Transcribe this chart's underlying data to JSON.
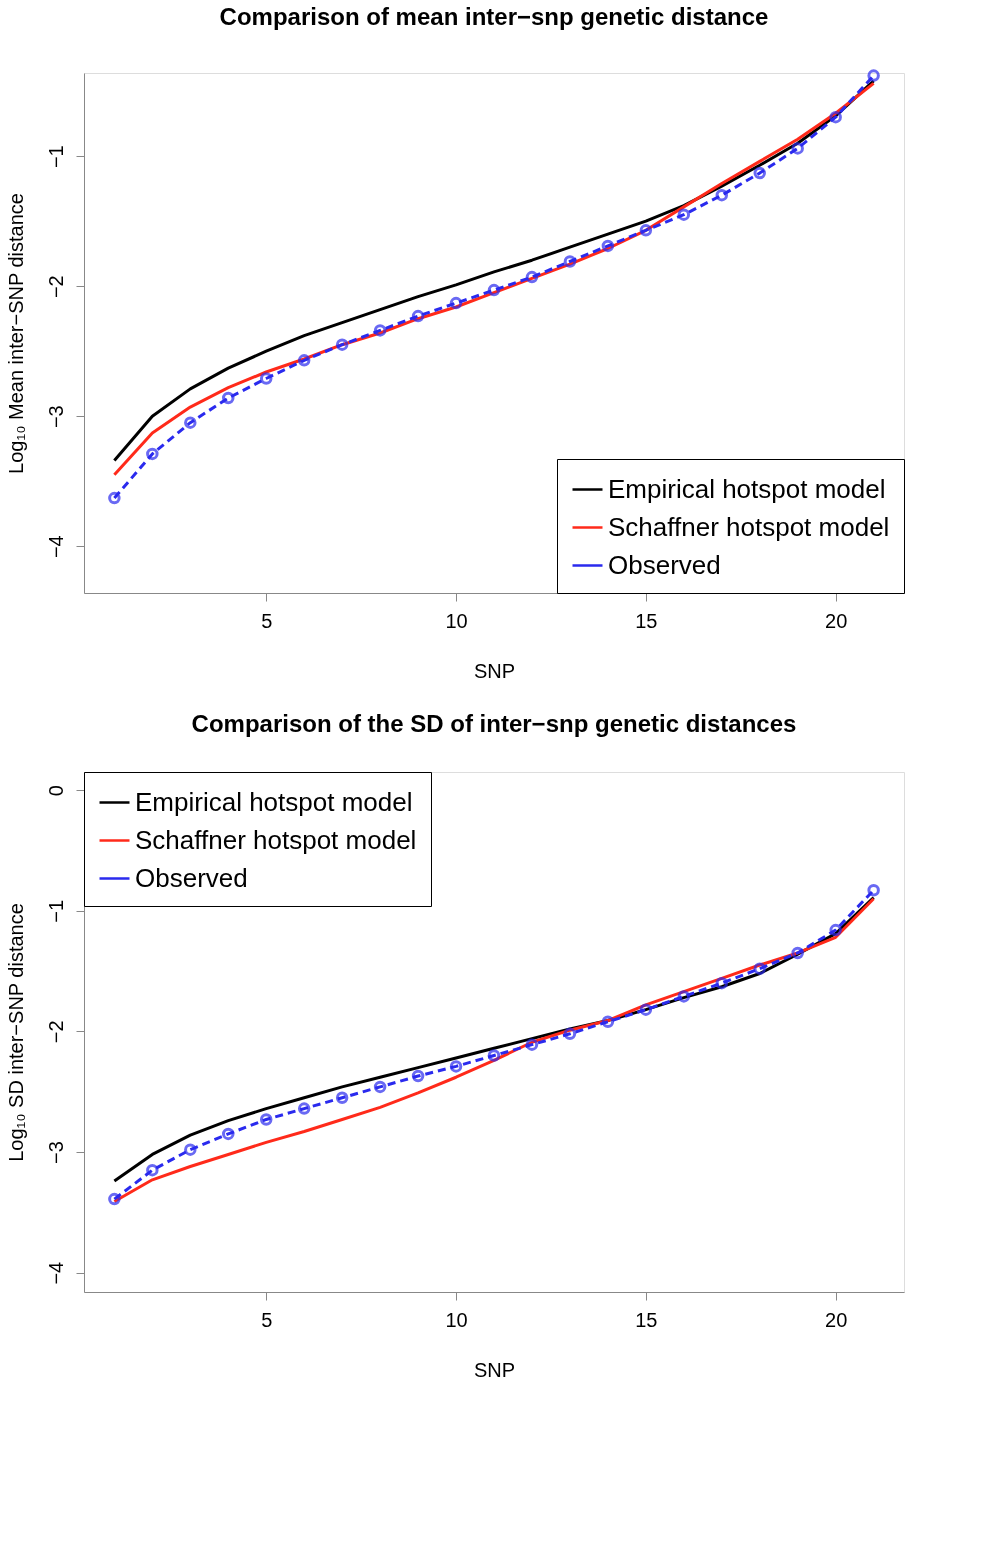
{
  "chart_data": [
    {
      "type": "line",
      "title": "Comparison of mean inter−snp genetic distance",
      "xlabel": "SNP",
      "ylabel": "Log₁₀ Mean inter−SNP distance",
      "x": [
        1,
        2,
        3,
        4,
        5,
        6,
        7,
        8,
        9,
        10,
        11,
        12,
        13,
        14,
        15,
        16,
        17,
        18,
        19,
        20,
        21
      ],
      "xlim": [
        0.2,
        21.8
      ],
      "xticks": [
        5,
        10,
        15,
        20
      ],
      "ylim": [
        -4.36,
        -0.36
      ],
      "yticks": [
        -4,
        -3,
        -2,
        -1
      ],
      "grid": false,
      "legend": "bottom right",
      "series": [
        {
          "name": "Empirical hotspot model",
          "color": "#000000",
          "line_style": "solid",
          "marker": "none",
          "values": [
            -3.34,
            -3.0,
            -2.79,
            -2.63,
            -2.5,
            -2.38,
            -2.28,
            -2.18,
            -2.08,
            -1.99,
            -1.89,
            -1.8,
            -1.7,
            -1.6,
            -1.5,
            -1.38,
            -1.23,
            -1.07,
            -0.9,
            -0.69,
            -0.42
          ]
        },
        {
          "name": "Schaffner hotspot model",
          "color": "#ff2a1a",
          "line_style": "solid",
          "marker": "none",
          "values": [
            -3.45,
            -3.13,
            -2.93,
            -2.78,
            -2.66,
            -2.56,
            -2.45,
            -2.36,
            -2.25,
            -2.16,
            -2.05,
            -1.94,
            -1.83,
            -1.71,
            -1.57,
            -1.39,
            -1.21,
            -1.04,
            -0.87,
            -0.67,
            -0.44
          ]
        },
        {
          "name": "Observed",
          "color": "#2a2aee",
          "line_style": "dashed",
          "marker": "circle",
          "values": [
            -3.63,
            -3.29,
            -3.05,
            -2.86,
            -2.71,
            -2.57,
            -2.45,
            -2.34,
            -2.23,
            -2.13,
            -2.03,
            -1.93,
            -1.81,
            -1.69,
            -1.57,
            -1.45,
            -1.3,
            -1.13,
            -0.94,
            -0.7,
            -0.38
          ]
        }
      ]
    },
    {
      "type": "line",
      "title": "Comparison of the SD of inter−snp genetic distances",
      "xlabel": "SNP",
      "ylabel": "Log₁₀ SD inter−SNP distance",
      "x": [
        1,
        2,
        3,
        4,
        5,
        6,
        7,
        8,
        9,
        10,
        11,
        12,
        13,
        14,
        15,
        16,
        17,
        18,
        19,
        20,
        21
      ],
      "xlim": [
        0.2,
        21.8
      ],
      "xticks": [
        5,
        10,
        15,
        20
      ],
      "ylim": [
        -4.16,
        0.15
      ],
      "yticks": [
        -4,
        -3,
        -2,
        -1,
        0
      ],
      "grid": false,
      "legend": "top left",
      "series": [
        {
          "name": "Empirical hotspot model",
          "color": "#000000",
          "line_style": "solid",
          "marker": "none",
          "values": [
            -3.24,
            -3.02,
            -2.86,
            -2.74,
            -2.64,
            -2.55,
            -2.46,
            -2.38,
            -2.3,
            -2.22,
            -2.14,
            -2.06,
            -1.98,
            -1.91,
            -1.82,
            -1.72,
            -1.63,
            -1.52,
            -1.36,
            -1.19,
            -0.89
          ]
        },
        {
          "name": "Schaffner hotspot model",
          "color": "#ff2a1a",
          "line_style": "solid",
          "marker": "none",
          "values": [
            -3.41,
            -3.23,
            -3.12,
            -3.02,
            -2.92,
            -2.83,
            -2.73,
            -2.63,
            -2.51,
            -2.38,
            -2.24,
            -2.09,
            -1.99,
            -1.91,
            -1.78,
            -1.67,
            -1.56,
            -1.45,
            -1.35,
            -1.22,
            -0.9
          ]
        },
        {
          "name": "Observed",
          "color": "#2a2aee",
          "line_style": "dashed",
          "marker": "circle",
          "values": [
            -3.39,
            -3.15,
            -2.98,
            -2.85,
            -2.73,
            -2.64,
            -2.55,
            -2.46,
            -2.37,
            -2.29,
            -2.2,
            -2.11,
            -2.02,
            -1.92,
            -1.82,
            -1.71,
            -1.6,
            -1.48,
            -1.35,
            -1.16,
            -0.83
          ]
        }
      ]
    }
  ]
}
